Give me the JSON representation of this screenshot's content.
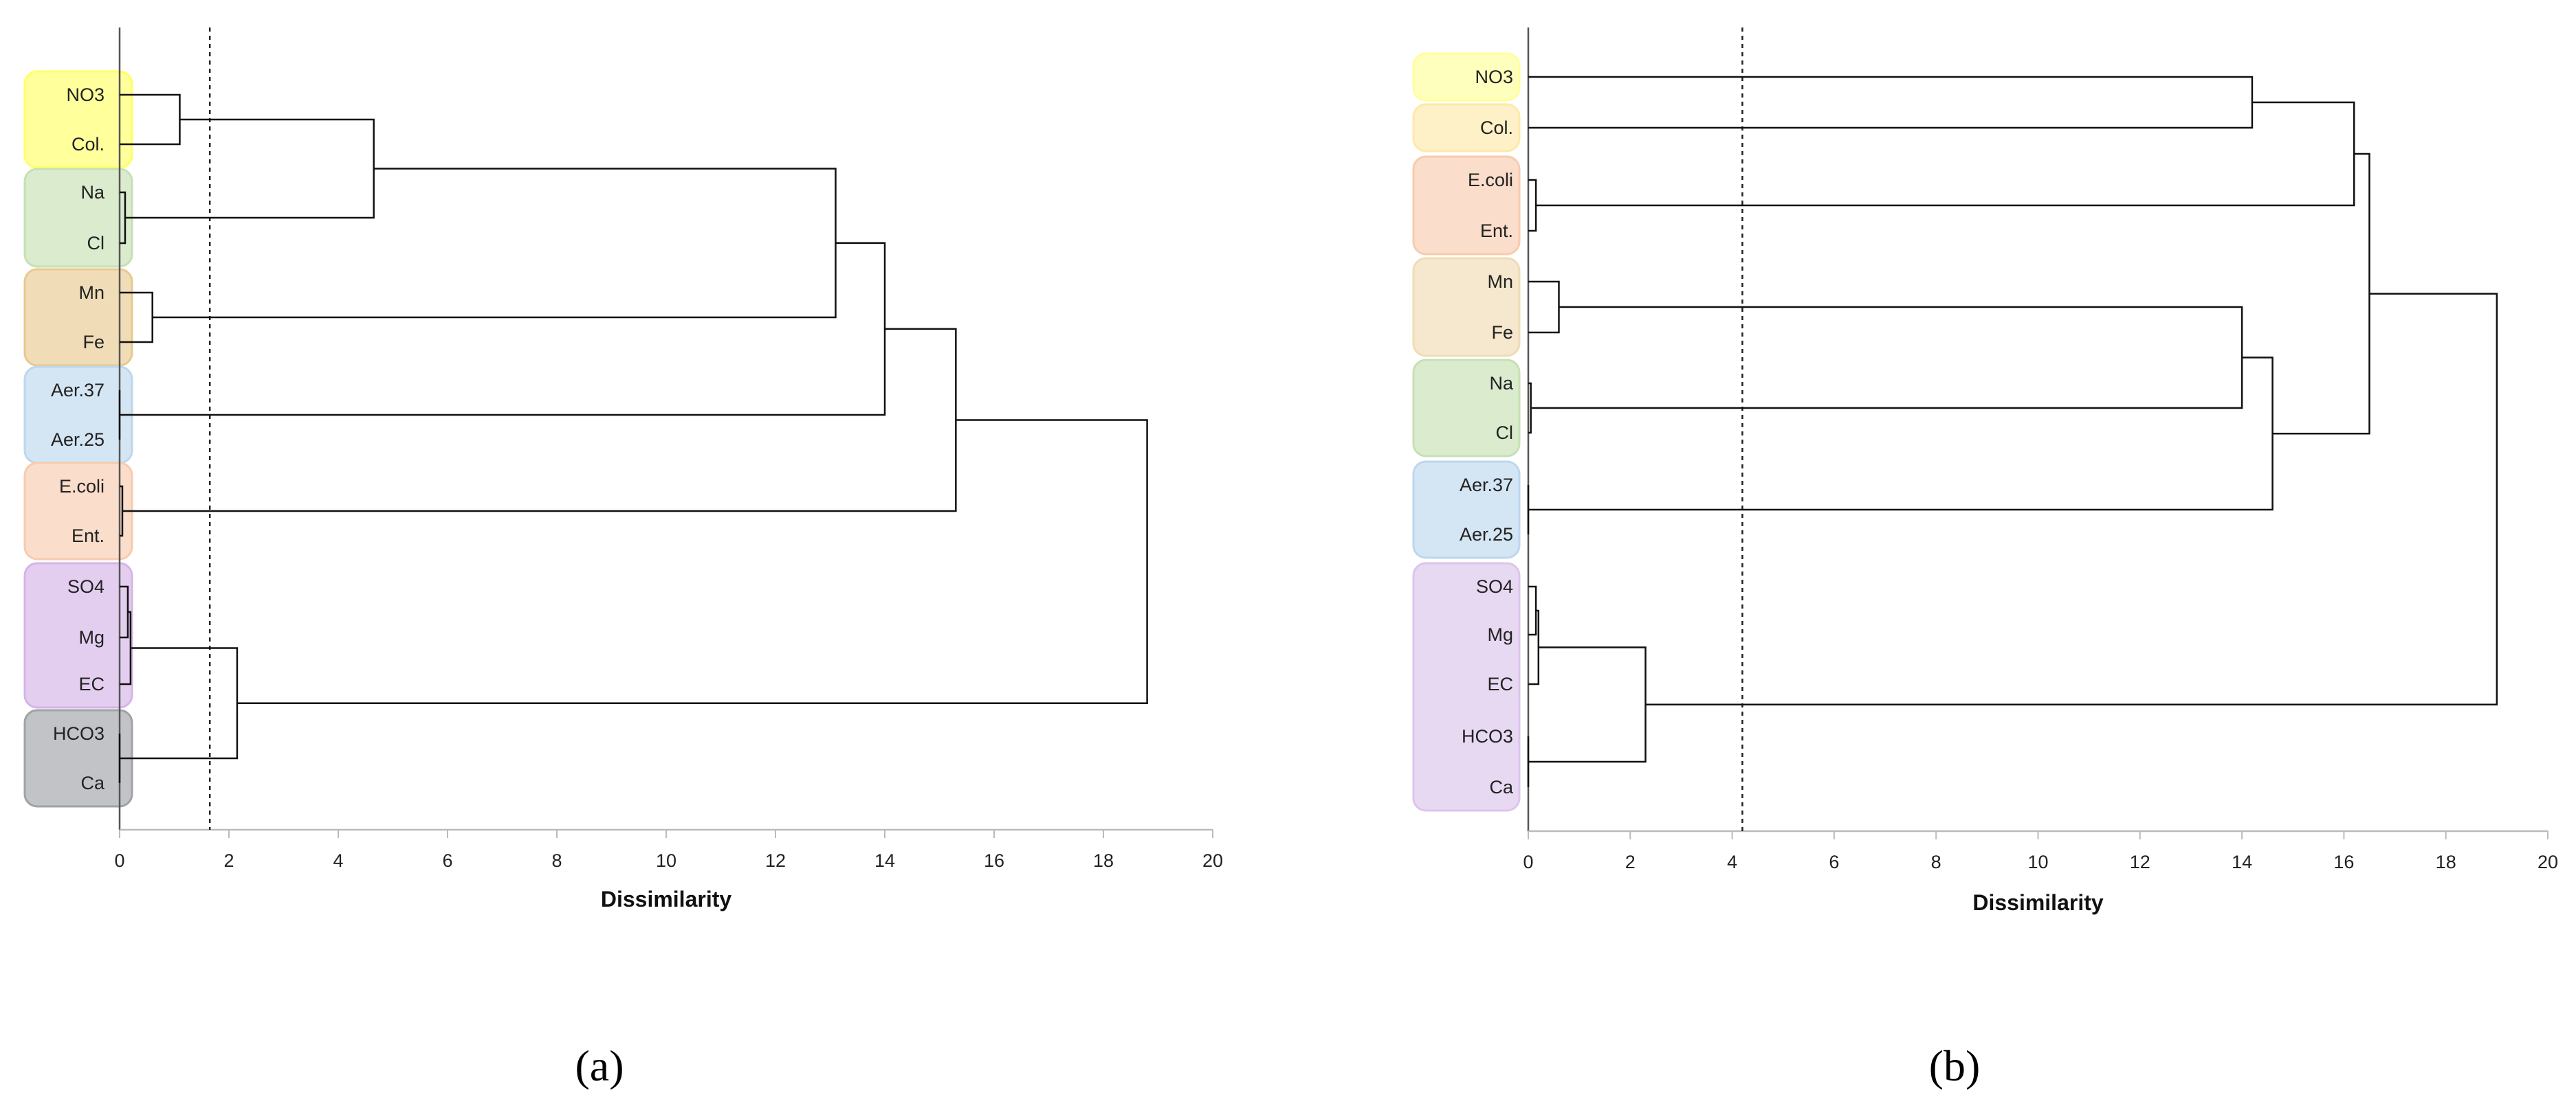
{
  "chart_data": [
    {
      "type": "dendrogram",
      "panel_label": "(a)",
      "xlabel": "Dissimilarity",
      "xlim": [
        0,
        20
      ],
      "xticks": [
        0,
        2,
        4,
        6,
        8,
        10,
        12,
        14,
        16,
        18,
        20
      ],
      "cutoff": 1.65,
      "leaves": [
        "NO3",
        "Col.",
        "Na",
        "Cl",
        "Mn",
        "Fe",
        "Aer.37",
        "Aer.25",
        "E.coli",
        "Ent.",
        "SO4",
        "Mg",
        "EC",
        "HCO3",
        "Ca"
      ],
      "groups": [
        {
          "leaves": [
            "NO3",
            "Col."
          ],
          "color": "#ffff66"
        },
        {
          "leaves": [
            "Na",
            "Cl"
          ],
          "color": "#c6e0b4"
        },
        {
          "leaves": [
            "Mn",
            "Fe"
          ],
          "color": "#e8c98f"
        },
        {
          "leaves": [
            "Aer.37",
            "Aer.25"
          ],
          "color": "#bdd7ee"
        },
        {
          "leaves": [
            "E.coli",
            "Ent."
          ],
          "color": "#f8cbad"
        },
        {
          "leaves": [
            "SO4",
            "Mg",
            "EC"
          ],
          "color": "#d5b4e8"
        },
        {
          "leaves": [
            "HCO3",
            "Ca"
          ],
          "color": "#9fa3a8"
        }
      ],
      "merges": [
        {
          "a": "Na",
          "b": "Cl",
          "height": 0.1
        },
        {
          "a": "E.coli",
          "b": "Ent.",
          "height": 0.05
        },
        {
          "a": "SO4",
          "b": "Mg",
          "height": 0.15
        },
        {
          "a": "Aer.37",
          "b": "Aer.25",
          "height": 0.0
        },
        {
          "a": "HCO3",
          "b": "Ca",
          "height": 0.0
        },
        {
          "a": "m3",
          "b": "EC",
          "height": 0.2
        },
        {
          "a": "Mn",
          "b": "Fe",
          "height": 0.6
        },
        {
          "a": "NO3",
          "b": "Col.",
          "height": 1.1
        },
        {
          "a": "m6",
          "b": "m5",
          "height": 2.15
        },
        {
          "a": "m8",
          "b": "m1",
          "height": 4.65
        },
        {
          "a": "m10",
          "b": "m7",
          "height": 13.1
        },
        {
          "a": "m11",
          "b": "m4",
          "height": 14.0
        },
        {
          "a": "m12",
          "b": "m2",
          "height": 15.3
        },
        {
          "a": "m13",
          "b": "m9",
          "height": 18.8
        }
      ]
    },
    {
      "type": "dendrogram",
      "panel_label": "(b)",
      "xlabel": "Dissimilarity",
      "xlim": [
        0,
        20
      ],
      "xticks": [
        0,
        2,
        4,
        6,
        8,
        10,
        12,
        14,
        16,
        18,
        20
      ],
      "cutoff": 4.2,
      "leaves": [
        "NO3",
        "Col.",
        "E.coli",
        "Ent.",
        "Mn",
        "Fe",
        "Na",
        "Cl",
        "Aer.37",
        "Aer.25",
        "SO4",
        "Mg",
        "EC",
        "HCO3",
        "Ca"
      ],
      "groups": [
        {
          "leaves": [
            "NO3"
          ],
          "color": "#ffff99"
        },
        {
          "leaves": [
            "Col."
          ],
          "color": "#fde9a9"
        },
        {
          "leaves": [
            "E.coli",
            "Ent."
          ],
          "color": "#f8cbad"
        },
        {
          "leaves": [
            "Mn",
            "Fe"
          ],
          "color": "#f0dcb4"
        },
        {
          "leaves": [
            "Na",
            "Cl"
          ],
          "color": "#c6e0b4"
        },
        {
          "leaves": [
            "Aer.37",
            "Aer.25"
          ],
          "color": "#bdd7ee"
        },
        {
          "leaves": [
            "SO4",
            "Mg",
            "EC",
            "HCO3",
            "Ca"
          ],
          "color": "#dcc4ec"
        }
      ],
      "merges": [
        {
          "a": "Na",
          "b": "Cl",
          "height": 0.05
        },
        {
          "a": "Aer.37",
          "b": "Aer.25",
          "height": 0.0
        },
        {
          "a": "HCO3",
          "b": "Ca",
          "height": 0.0
        },
        {
          "a": "E.coli",
          "b": "Ent.",
          "height": 0.15
        },
        {
          "a": "SO4",
          "b": "Mg",
          "height": 0.15
        },
        {
          "a": "m5",
          "b": "EC",
          "height": 0.2
        },
        {
          "a": "Mn",
          "b": "Fe",
          "height": 0.6
        },
        {
          "a": "m6",
          "b": "m3",
          "height": 2.3
        },
        {
          "a": "m7",
          "b": "m1",
          "height": 14.0
        },
        {
          "a": "NO3",
          "b": "Col.",
          "height": 14.2
        },
        {
          "a": "m9",
          "b": "m2",
          "height": 14.6
        },
        {
          "a": "m10",
          "b": "m4",
          "height": 16.2
        },
        {
          "a": "m12",
          "b": "m11",
          "height": 16.5
        },
        {
          "a": "m13",
          "b": "m8",
          "height": 19.0
        }
      ]
    }
  ]
}
